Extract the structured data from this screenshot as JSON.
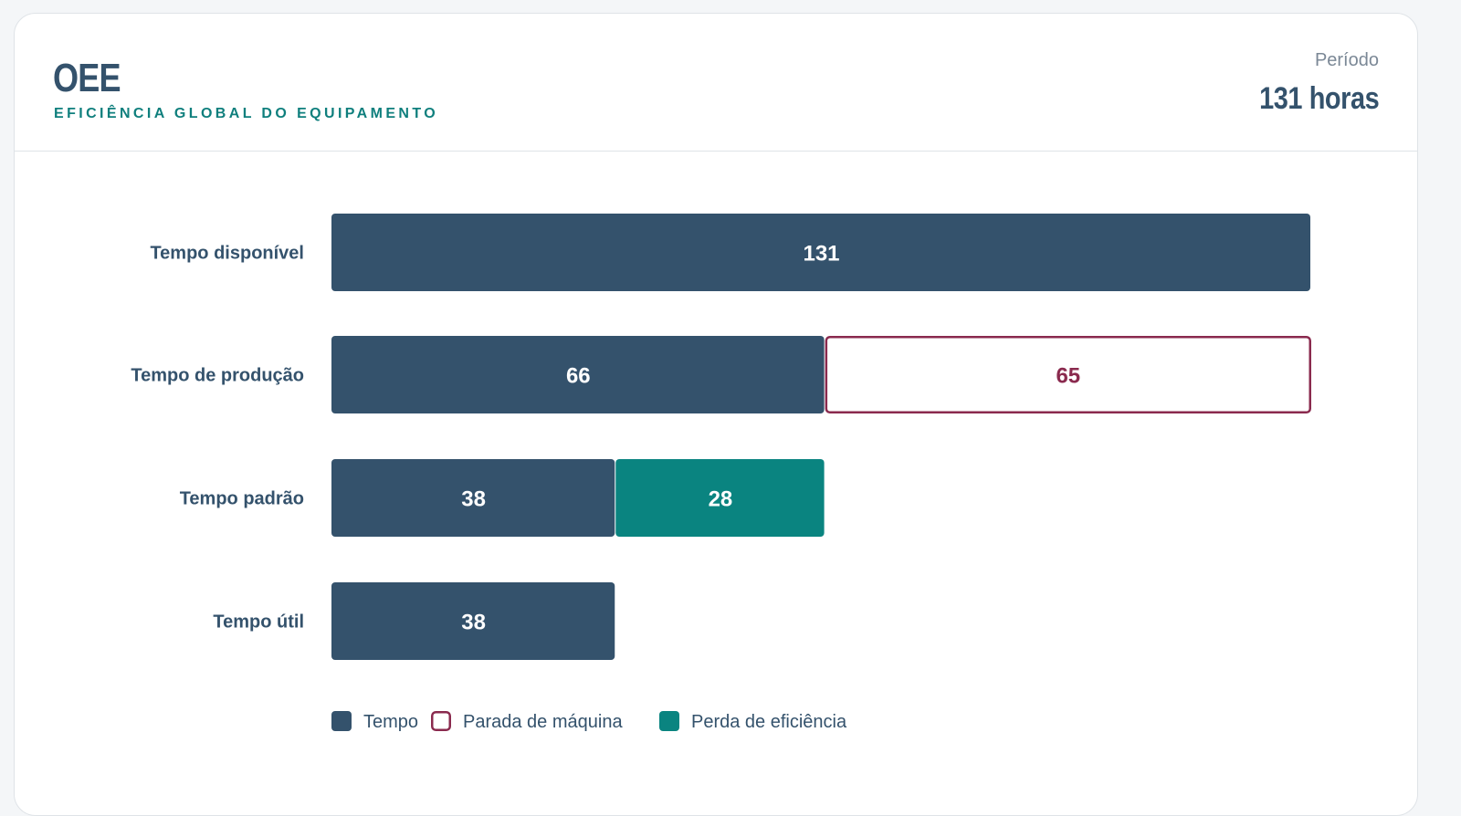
{
  "header": {
    "title": "OEE",
    "subtitle": "EFICIÊNCIA GLOBAL DO EQUIPAMENTO",
    "period_label": "Período",
    "period_value": "131 horas"
  },
  "colors": {
    "tempo": "#34526c",
    "parada": "#8a2a4e",
    "perda": "#0a8480"
  },
  "chart_data": {
    "type": "bar",
    "orientation": "horizontal",
    "stacked": true,
    "categories": [
      "Tempo disponível",
      "Tempo de produção",
      "Tempo padrão",
      "Tempo útil"
    ],
    "xlim": [
      0,
      131
    ],
    "series": [
      {
        "name": "Tempo",
        "key": "tempo",
        "values": [
          131,
          66,
          38,
          38
        ]
      },
      {
        "name": "Parada de máquina",
        "key": "parada",
        "values": [
          0,
          65,
          0,
          0
        ]
      },
      {
        "name": "Perda de eficiência",
        "key": "perda",
        "values": [
          0,
          0,
          28,
          0
        ]
      }
    ],
    "legend": [
      "Tempo",
      "Parada de máquina",
      "Perda de eficiência"
    ],
    "legend_position": "bottom-left"
  }
}
